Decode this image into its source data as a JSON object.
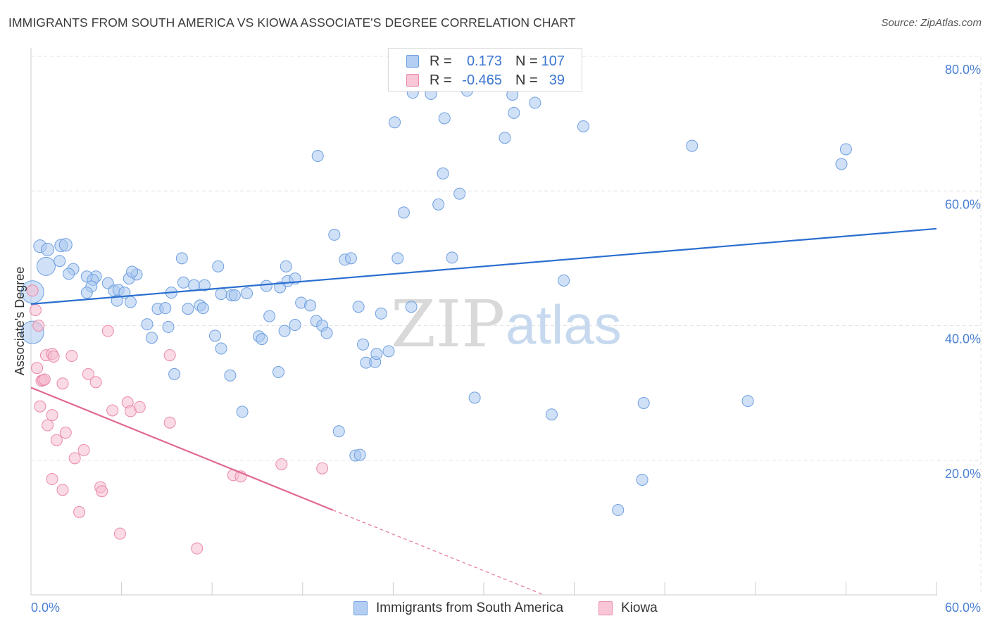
{
  "title": "IMMIGRANTS FROM SOUTH AMERICA VS KIOWA ASSOCIATE'S DEGREE CORRELATION CHART",
  "source": "Source: ZipAtlas.com",
  "watermark": {
    "zip": "ZIP",
    "atlas": "atlas"
  },
  "legend": {
    "rows": [
      {
        "r_label": "R =",
        "r_value": "0.173",
        "n_label": "N =",
        "n_value": "107"
      },
      {
        "r_label": "R =",
        "r_value": "-0.465",
        "n_label": "N =",
        "n_value": "39"
      }
    ]
  },
  "bottom_legend": [
    {
      "label": "Immigrants from South America"
    },
    {
      "label": "Kiowa"
    }
  ],
  "chart_data": {
    "type": "scatter",
    "title": "IMMIGRANTS FROM SOUTH AMERICA VS KIOWA ASSOCIATE'S DEGREE CORRELATION CHART",
    "xlabel": "",
    "ylabel": "Associate's Degree",
    "xlim": [
      0,
      60
    ],
    "ylim": [
      0,
      80
    ],
    "x_tick_labels": [
      "0.0%",
      "60.0%"
    ],
    "y_ticks": [
      20,
      40,
      60,
      80
    ],
    "y_tick_labels": [
      "20.0%",
      "40.0%",
      "60.0%",
      "80.0%"
    ],
    "grid": true,
    "legend_position": "top-center",
    "colors": {
      "south_america_fill": "#a9c8f0",
      "south_america_stroke": "#6f9fe0",
      "south_america_line": "#2a6fd0",
      "kiowa_fill": "#f6bcd0",
      "kiowa_stroke": "#e98aab",
      "kiowa_line": "#e06890"
    },
    "series": [
      {
        "name": "Immigrants from South America",
        "R": 0.173,
        "N": 107,
        "trend": {
          "x": [
            0,
            60
          ],
          "y": [
            43.2,
            54.4
          ]
        },
        "points": [
          [
            0.1,
            45.0,
            16
          ],
          [
            0.1,
            39.0,
            16
          ],
          [
            1.0,
            48.8,
            13
          ],
          [
            0.6,
            51.8,
            9
          ],
          [
            1.1,
            51.3,
            9
          ],
          [
            2.0,
            51.9,
            9
          ],
          [
            2.3,
            52.0,
            9
          ],
          [
            1.9,
            49.6,
            8
          ],
          [
            2.8,
            48.4,
            8
          ],
          [
            2.5,
            47.7,
            8
          ],
          [
            4.3,
            47.3,
            8
          ],
          [
            3.7,
            47.3,
            8
          ],
          [
            4.1,
            46.8,
            8
          ],
          [
            5.1,
            46.3,
            8
          ],
          [
            6.5,
            47.0,
            8
          ],
          [
            7.0,
            47.6,
            8
          ],
          [
            6.7,
            48.0,
            8
          ],
          [
            4.0,
            45.8,
            8
          ],
          [
            5.5,
            45.2,
            8
          ],
          [
            5.8,
            45.3,
            8
          ],
          [
            6.2,
            44.9,
            8
          ],
          [
            3.7,
            44.9,
            8
          ],
          [
            5.7,
            43.7,
            8
          ],
          [
            6.6,
            43.5,
            8
          ],
          [
            8.4,
            42.5,
            8
          ],
          [
            8.9,
            42.6,
            8
          ],
          [
            9.3,
            44.9,
            8
          ],
          [
            10.1,
            46.4,
            8
          ],
          [
            10.8,
            46.0,
            8
          ],
          [
            11.5,
            46.0,
            8
          ],
          [
            10.4,
            42.5,
            8
          ],
          [
            11.2,
            43.0,
            8
          ],
          [
            11.4,
            42.6,
            8
          ],
          [
            12.6,
            44.7,
            8
          ],
          [
            13.3,
            44.5,
            8
          ],
          [
            13.5,
            44.5,
            8
          ],
          [
            14.3,
            44.8,
            8
          ],
          [
            15.6,
            45.9,
            8
          ],
          [
            16.5,
            45.7,
            8
          ],
          [
            17.0,
            46.6,
            8
          ],
          [
            17.5,
            47.0,
            8
          ],
          [
            16.9,
            48.8,
            8
          ],
          [
            12.4,
            48.8,
            8
          ],
          [
            10.0,
            50.0,
            8
          ],
          [
            7.7,
            40.2,
            8
          ],
          [
            9.1,
            39.8,
            8
          ],
          [
            8.0,
            38.2,
            8
          ],
          [
            9.5,
            32.8,
            8
          ],
          [
            12.2,
            38.5,
            8
          ],
          [
            12.6,
            36.6,
            8
          ],
          [
            13.2,
            32.6,
            8
          ],
          [
            14.0,
            27.2,
            8
          ],
          [
            15.1,
            38.4,
            8
          ],
          [
            15.3,
            38.0,
            8
          ],
          [
            15.8,
            41.4,
            8
          ],
          [
            16.4,
            33.1,
            8
          ],
          [
            16.8,
            39.2,
            8
          ],
          [
            17.5,
            40.1,
            8
          ],
          [
            17.9,
            43.4,
            8
          ],
          [
            18.5,
            43.0,
            8
          ],
          [
            18.9,
            40.7,
            8
          ],
          [
            19.3,
            40.0,
            8
          ],
          [
            19.6,
            38.9,
            8
          ],
          [
            20.1,
            53.5,
            8
          ],
          [
            20.8,
            49.8,
            8
          ],
          [
            21.2,
            50.0,
            8
          ],
          [
            21.7,
            42.8,
            8
          ],
          [
            22.0,
            37.2,
            8
          ],
          [
            22.2,
            34.5,
            8
          ],
          [
            22.8,
            34.6,
            8
          ],
          [
            22.9,
            35.8,
            8
          ],
          [
            23.2,
            41.8,
            8
          ],
          [
            23.7,
            36.2,
            8
          ],
          [
            20.4,
            24.3,
            8
          ],
          [
            21.5,
            20.7,
            8
          ],
          [
            21.8,
            20.8,
            8
          ],
          [
            24.3,
            50.0,
            8
          ],
          [
            24.1,
            70.2,
            8
          ],
          [
            24.7,
            56.8,
            8
          ],
          [
            25.2,
            42.8,
            8
          ],
          [
            25.3,
            74.6,
            8
          ],
          [
            26.5,
            74.4,
            8
          ],
          [
            27.0,
            58.0,
            8
          ],
          [
            27.3,
            62.6,
            8
          ],
          [
            27.4,
            70.8,
            8
          ],
          [
            27.9,
            50.1,
            8
          ],
          [
            28.4,
            59.6,
            8
          ],
          [
            28.9,
            74.9,
            8
          ],
          [
            29.2,
            77.4,
            8
          ],
          [
            28.5,
            77.7,
            8
          ],
          [
            30.0,
            77.0,
            8
          ],
          [
            31.9,
            74.3,
            8
          ],
          [
            32.0,
            71.6,
            8
          ],
          [
            31.4,
            67.9,
            8
          ],
          [
            33.4,
            73.1,
            8
          ],
          [
            29.4,
            29.3,
            8
          ],
          [
            34.5,
            26.8,
            8
          ],
          [
            35.3,
            46.7,
            8
          ],
          [
            36.6,
            69.6,
            8
          ],
          [
            40.6,
            28.5,
            8
          ],
          [
            40.5,
            17.1,
            8
          ],
          [
            38.9,
            12.6,
            8
          ],
          [
            43.8,
            66.7,
            8
          ],
          [
            47.5,
            28.8,
            8
          ],
          [
            53.7,
            64.0,
            8
          ],
          [
            54.0,
            66.2,
            8
          ],
          [
            19.0,
            65.2,
            8
          ]
        ]
      },
      {
        "name": "Kiowa",
        "R": -0.465,
        "N": 39,
        "trend": {
          "x": [
            0,
            20
          ],
          "y": [
            30.8,
            12.6
          ]
        },
        "trend_dashed": {
          "x": [
            20,
            34
          ],
          "y": [
            12.6,
            0
          ]
        },
        "points": [
          [
            0.3,
            42.3,
            8
          ],
          [
            0.1,
            45.2,
            8
          ],
          [
            0.4,
            33.7,
            8
          ],
          [
            0.5,
            40.0,
            8
          ],
          [
            0.6,
            28.0,
            8
          ],
          [
            0.7,
            31.8,
            8
          ],
          [
            0.8,
            31.9,
            8
          ],
          [
            0.9,
            32.0,
            8
          ],
          [
            1.0,
            35.6,
            8
          ],
          [
            1.1,
            25.2,
            8
          ],
          [
            1.4,
            35.8,
            8
          ],
          [
            1.5,
            35.4,
            8
          ],
          [
            1.4,
            26.7,
            8
          ],
          [
            1.7,
            23.0,
            8
          ],
          [
            2.1,
            31.4,
            8
          ],
          [
            2.3,
            24.1,
            8
          ],
          [
            2.7,
            35.5,
            8
          ],
          [
            2.9,
            20.3,
            8
          ],
          [
            3.5,
            21.5,
            8
          ],
          [
            3.8,
            32.8,
            8
          ],
          [
            4.3,
            31.6,
            8
          ],
          [
            1.4,
            17.2,
            8
          ],
          [
            2.1,
            15.6,
            8
          ],
          [
            3.2,
            12.3,
            8
          ],
          [
            4.6,
            16.0,
            8
          ],
          [
            4.7,
            15.4,
            8
          ],
          [
            5.1,
            39.2,
            8
          ],
          [
            5.4,
            27.4,
            8
          ],
          [
            5.9,
            9.1,
            8
          ],
          [
            6.4,
            28.6,
            8
          ],
          [
            6.6,
            27.3,
            8
          ],
          [
            7.2,
            27.9,
            8
          ],
          [
            9.2,
            25.6,
            8
          ],
          [
            9.2,
            35.6,
            8
          ],
          [
            11.0,
            6.9,
            8
          ],
          [
            13.4,
            17.8,
            8
          ],
          [
            13.9,
            17.6,
            8
          ],
          [
            16.6,
            19.4,
            8
          ],
          [
            19.3,
            18.8,
            8
          ]
        ]
      }
    ]
  }
}
